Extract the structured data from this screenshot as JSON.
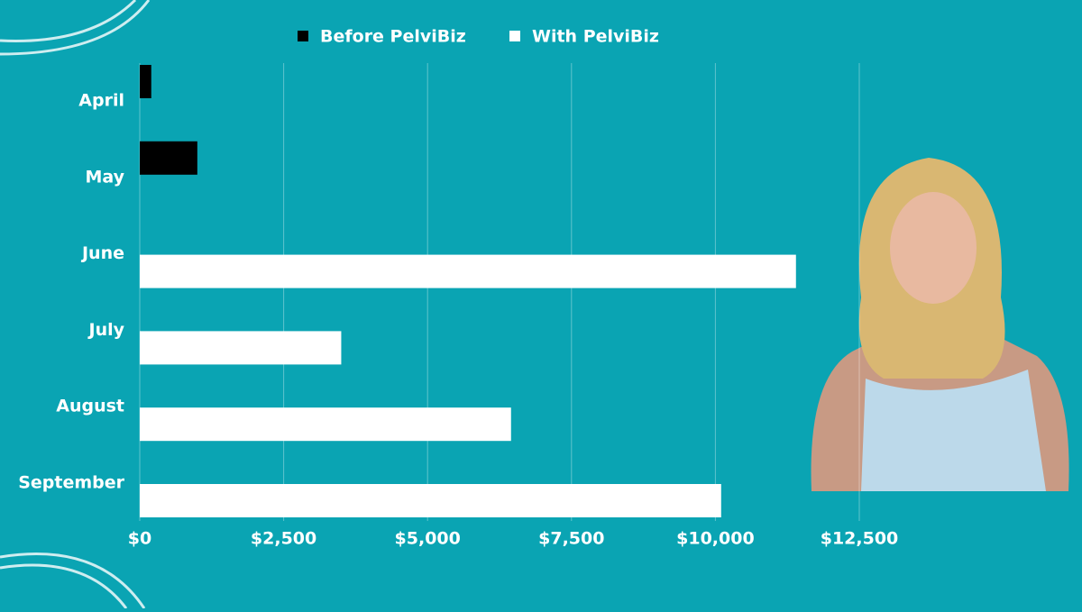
{
  "chart_data": {
    "type": "bar",
    "orientation": "horizontal",
    "categories": [
      "April",
      "May",
      "June",
      "July",
      "August",
      "September"
    ],
    "series": [
      {
        "name": "Before PelviBiz",
        "color": "#000000",
        "values": [
          200,
          1000,
          null,
          null,
          null,
          null
        ]
      },
      {
        "name": "With PelviBiz",
        "color": "#ffffff",
        "values": [
          null,
          null,
          11400,
          3500,
          6450,
          10100
        ]
      }
    ],
    "xlim": [
      0,
      12500
    ],
    "xticks": [
      {
        "value": 0,
        "label": "$0"
      },
      {
        "value": 2500,
        "label": "$2,500"
      },
      {
        "value": 5000,
        "label": "$5,000"
      },
      {
        "value": 7500,
        "label": "$7,500"
      },
      {
        "value": 10000,
        "label": "$10,000"
      },
      {
        "value": 12500,
        "label": "$12,500"
      }
    ],
    "grid": true,
    "legend": "top"
  }
}
